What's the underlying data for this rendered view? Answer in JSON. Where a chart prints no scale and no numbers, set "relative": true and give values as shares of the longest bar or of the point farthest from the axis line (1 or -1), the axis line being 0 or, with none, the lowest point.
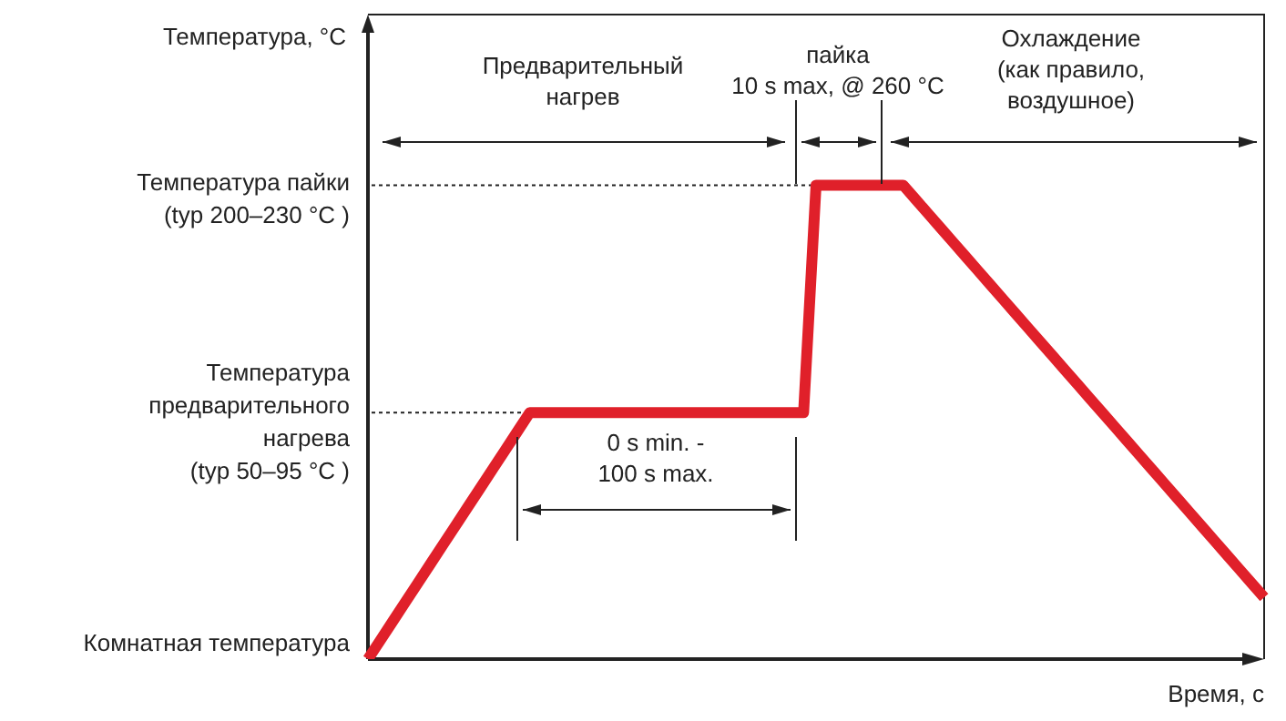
{
  "chart_data": {
    "type": "line",
    "relative": true,
    "xlabel": "Время, с",
    "categories": [
      null,
      null,
      null,
      null,
      null,
      null,
      null,
      null,
      null,
      null,
      null,
      null,
      null,
      null,
      null,
      null,
      null,
      null,
      null,
      null,
      null,
      null,
      null,
      null,
      null,
      null,
      null,
      null,
      null,
      null,
      null,
      null,
      null,
      null,
      null,
      null,
      null,
      null,
      null,
      null,
      null,
      null,
      null,
      null,
      null,
      null,
      null,
      null,
      null,
      null,
      null,
      null,
      null,
      null,
      null,
      null,
      null,
      null,
      null,
      null,
      null,
      null,
      null,
      null,
      null,
      null,
      null,
      null,
      null,
      null,
      null,
      null,
      null
    ],
    "series": [
      {
        "color": "#e0202a",
        "values": [
          0,
          0.04,
          0.08,
          0.12,
          0.16,
          0.2,
          0.24,
          0.28,
          0.32,
          0.36,
          0.4,
          0.44,
          0.48,
          0.52,
          0.52,
          0.52,
          0.52,
          0.52,
          0.52,
          0.52,
          0.52,
          0.52,
          0.52,
          0.52,
          0.52,
          0.52,
          0.52,
          0.52,
          0.52,
          0.52,
          0.52,
          0.52,
          0.52,
          0.52,
          0.52,
          0.52,
          1,
          1,
          1,
          1,
          1,
          1,
          1,
          1,
          0.97,
          0.94,
          0.91,
          0.88,
          0.85,
          0.82,
          0.79,
          0.76,
          0.73,
          0.7,
          0.67,
          0.64,
          0.61,
          0.58,
          0.55,
          0.52,
          0.49,
          0.46,
          0.43,
          0.4,
          0.37,
          0.34,
          0.31,
          0.28,
          0.25,
          0.22,
          0.19,
          0.16,
          0.13
        ]
      }
    ],
    "ref_lines": [
      {
        "axis": "y",
        "value": 1,
        "label": "Температура пайки\n(typ 200–230 °C )",
        "line_style": "dotted"
      },
      {
        "axis": "y",
        "value": 0.52,
        "label": "Температура\nпредварительного\nнагрева\n(typ 50–95 °C )",
        "line_style": "dotted"
      }
    ],
    "annotations": [
      "Температура, °C",
      "Комнатная температура",
      "Предварительный\nнагрев",
      "пайка\n10 s max, @ 260 °C",
      "Охлаждение\n(как правило,\nвоздушное)",
      "0 s min. -\n100 s max."
    ],
    "legend": false,
    "marker": "none",
    "line_style": "solid"
  }
}
